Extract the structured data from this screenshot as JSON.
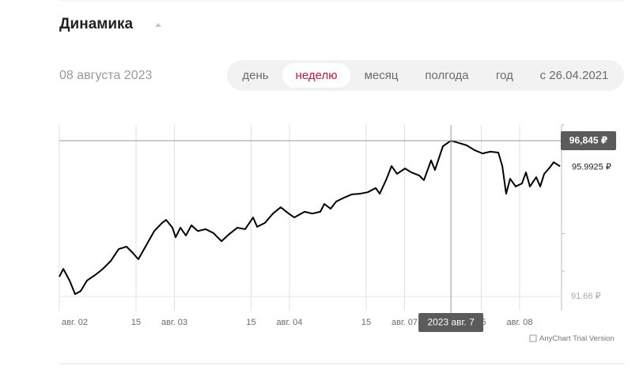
{
  "header": {
    "title": "Динамика",
    "date": "08 августа 2023"
  },
  "tabs": {
    "items": [
      "день",
      "неделю",
      "месяц",
      "полгода",
      "год",
      "с 26.04.2021"
    ],
    "active": 1
  },
  "chart_data": {
    "type": "line",
    "x": [
      0,
      0.26,
      0.67,
      1.03,
      1.39,
      1.8,
      2.32,
      2.84,
      3.35,
      3.87,
      4.38,
      4.79,
      5.15,
      5.67,
      6.19,
      6.7,
      6.96,
      7.37,
      7.58,
      7.89,
      8.25,
      8.61,
      9.02,
      9.54,
      10.05,
      10.57,
      11.08,
      11.6,
      12.11,
      12.63,
      12.89,
      13.4,
      13.92,
      14.43,
      14.95,
      15.31,
      15.98,
      16.49,
      17.01,
      17.27,
      17.68,
      18.04,
      18.56,
      19.07,
      19.59,
      20.1,
      20.62,
      20.88,
      21.29,
      21.65,
      22.01,
      22.53,
      22.94,
      23.45,
      23.76,
      24.23,
      24.48,
      25,
      25.52,
      26.03,
      26.55,
      27.06,
      27.58,
      28.09,
      28.61,
      28.87,
      29.12,
      29.38,
      29.74,
      30.15,
      30.41,
      30.67,
      31.08,
      31.34,
      31.6,
      31.96,
      32.22,
      32.63
    ],
    "values": [
      92.32,
      92.58,
      92.19,
      91.74,
      91.84,
      92.19,
      92.37,
      92.58,
      92.84,
      93.24,
      93.32,
      93.11,
      92.9,
      93.37,
      93.84,
      94.11,
      94.21,
      93.95,
      93.63,
      93.95,
      93.69,
      94.03,
      93.84,
      93.9,
      93.77,
      93.5,
      93.74,
      93.95,
      93.9,
      94.29,
      93.98,
      94.11,
      94.42,
      94.63,
      94.42,
      94.29,
      94.48,
      94.42,
      94.48,
      94.74,
      94.58,
      94.82,
      94.95,
      95.06,
      95.08,
      95.13,
      95.27,
      95.08,
      95.53,
      96,
      95.74,
      95.92,
      95.79,
      95.69,
      95.53,
      96.19,
      95.87,
      96.66,
      96.845,
      96.77,
      96.69,
      96.53,
      96.42,
      96.48,
      96.45,
      96,
      95.08,
      95.58,
      95.32,
      95.42,
      95.79,
      95.32,
      95.63,
      95.32,
      95.74,
      95.95,
      96.13,
      95.9925
    ],
    "color": "#000000",
    "xlim": [
      0,
      32.73
    ],
    "xticks": [
      {
        "value": 0,
        "label": "авг. 02"
      },
      {
        "value": 5,
        "label": "15"
      },
      {
        "value": 7.5,
        "label": "авг. 03"
      },
      {
        "value": 12.5,
        "label": "15"
      },
      {
        "value": 15,
        "label": "авг. 04"
      },
      {
        "value": 20,
        "label": "15"
      },
      {
        "value": 22.5,
        "label": "авг. 07"
      },
      {
        "value": 27.5,
        "label": "15"
      },
      {
        "value": 30,
        "label": "авг. 08"
      }
    ],
    "ylim": [
      91.19,
      97.37
    ],
    "yticks": [
      {
        "value": 91.66,
        "label": "91.66 ₽"
      }
    ],
    "grid": true,
    "last_value_label": "95.9925 ₽",
    "crosshair": {
      "x": 25.52,
      "x_label": "2023 авг. 7",
      "y": 96.845,
      "y_label": "96,845 ₽"
    },
    "credit": "AnyChart Trial Version"
  }
}
